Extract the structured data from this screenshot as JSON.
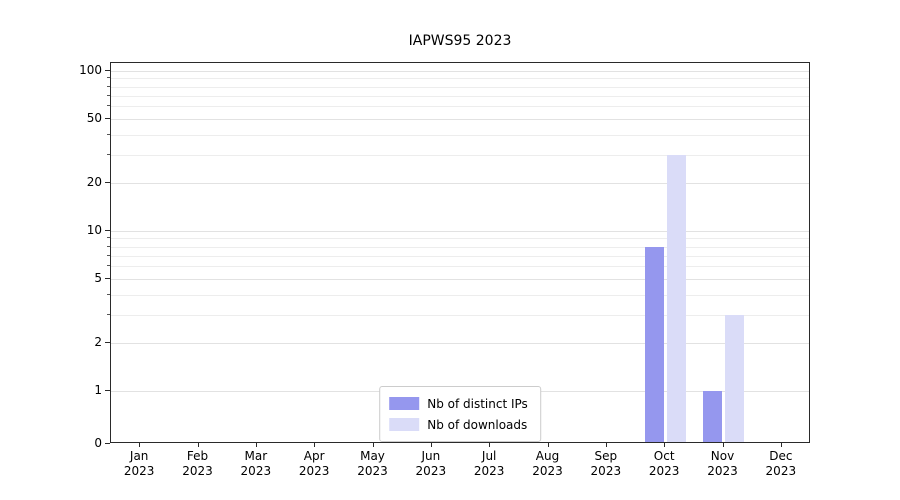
{
  "chart_data": {
    "type": "bar",
    "title": "IAPWS95 2023",
    "categories": [
      "Jan 2023",
      "Feb 2023",
      "Mar 2023",
      "Apr 2023",
      "May 2023",
      "Jun 2023",
      "Jul 2023",
      "Aug 2023",
      "Sep 2023",
      "Oct 2023",
      "Nov 2023",
      "Dec 2023"
    ],
    "series": [
      {
        "name": "Nb of distinct IPs",
        "color": "#9597ee",
        "values": [
          0,
          0,
          0,
          0,
          0,
          0,
          0,
          0,
          0,
          8,
          1,
          0
        ]
      },
      {
        "name": "Nb of downloads",
        "color": "#dadcf8",
        "values": [
          0,
          0,
          0,
          0,
          0,
          0,
          0,
          0,
          0,
          30,
          3,
          0
        ]
      }
    ],
    "yscale": "symlog",
    "ylim": [
      0,
      100
    ],
    "ytick_labels": [
      0,
      1,
      2,
      5,
      10,
      20,
      50,
      100
    ],
    "grid": "horizontal-with-minor",
    "legend_position": "lower-center"
  }
}
